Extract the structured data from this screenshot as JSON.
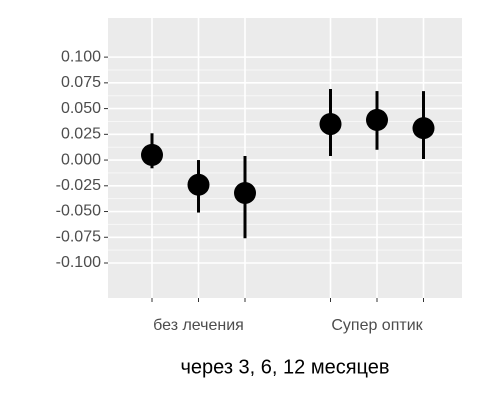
{
  "chart_data": {
    "type": "pointrange",
    "x_label": "через 3, 6, 12 месяцев",
    "categories": [
      null,
      "без лечения",
      null,
      null,
      "Супер оптик",
      null
    ],
    "values": [
      0.005,
      -0.024,
      -0.032,
      0.035,
      0.039,
      0.031
    ],
    "lower": [
      -0.008,
      -0.051,
      -0.076,
      0.004,
      0.01,
      0.001
    ],
    "upper": [
      0.026,
      0.0,
      0.004,
      0.069,
      0.067,
      0.067
    ],
    "color": "#000000",
    "ylim": [
      -0.134,
      0.138
    ],
    "yticks": [
      {
        "value": -0.1,
        "label": "-0.100"
      },
      {
        "value": -0.075,
        "label": "-0.075"
      },
      {
        "value": -0.05,
        "label": "-0.050"
      },
      {
        "value": -0.025,
        "label": "-0.025"
      },
      {
        "value": 0,
        "label": "0.000"
      },
      {
        "value": 0.025,
        "label": "0.025"
      },
      {
        "value": 0.05,
        "label": "0.050"
      },
      {
        "value": 0.075,
        "label": "0.075"
      },
      {
        "value": 0.1,
        "label": "0.100"
      }
    ],
    "grid": true
  }
}
